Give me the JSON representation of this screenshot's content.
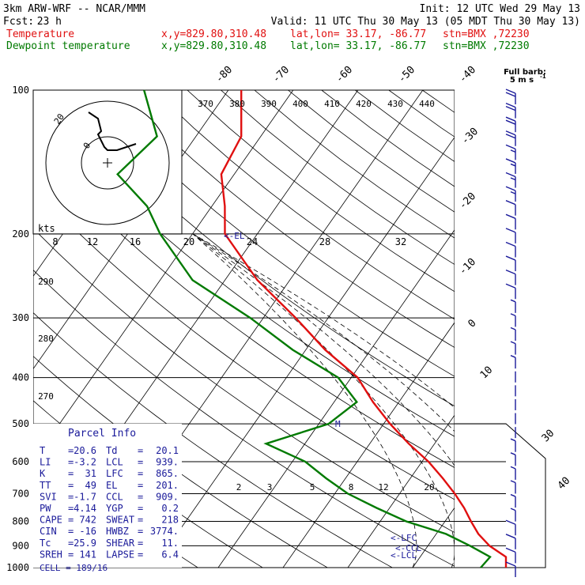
{
  "header": {
    "model": "3km ARW-WRF -- NCAR/MMM",
    "init": "Init: 12 UTC Wed 29 May 13",
    "fcst_label": "Fcst:",
    "fcst_hours": "23 h",
    "valid": "Valid: 11 UTC Thu 30 May 13 (05 MDT Thu 30 May 13)",
    "temp_line": {
      "name": "Temperature",
      "xy": "x,y=829.80,310.48",
      "latlon": "lat,lon= 33.17, -86.77",
      "stn": "stn=BMX ,72230"
    },
    "dew_line": {
      "name": "Dewpoint temperature",
      "xy": "x,y=829.80,310.48",
      "latlon": "lat,lon= 33.17, -86.77",
      "stn": "stn=BMX ,72230"
    }
  },
  "colors": {
    "temperature": "#e01010",
    "dewpoint": "#007a00",
    "barbs": "#1a1a9a",
    "grid": "#000000"
  },
  "barb_legend": {
    "title": "Full barb:",
    "value": "5 m s",
    "exp": "-1"
  },
  "hodograph": {
    "kts_label": "kts",
    "rings": [
      "20",
      "0"
    ],
    "speed_ticks": [
      "8",
      "12",
      "16",
      "20",
      "24",
      "28",
      "32"
    ]
  },
  "annotations": {
    "el": "<-EL",
    "lfc": "<-LFC",
    "ccl": "<-CCL",
    "lcl": "<-LCL",
    "m_mark": "M"
  },
  "isotherm_labels": [
    "-80",
    "-70",
    "-60",
    "-50",
    "-40",
    "-30",
    "-20",
    "-10",
    "0",
    "10",
    "30",
    "40"
  ],
  "theta_labels": [
    "290",
    "280",
    "270"
  ],
  "theta_e_labels": [
    "370",
    "380",
    "390",
    "400",
    "410",
    "420",
    "430",
    "440"
  ],
  "mixing_ratio_labels": [
    "2",
    "3",
    "5",
    "8",
    "12",
    "20"
  ],
  "parcel_info": {
    "title": "Parcel Info",
    "rows": [
      {
        "k1": "T",
        "v1": "20.6",
        "k2": "Td",
        "v2": "20.1"
      },
      {
        "k1": "LI",
        "v1": "-3.2",
        "k2": "LCL",
        "v2": "939."
      },
      {
        "k1": "K",
        "v1": "31",
        "k2": "LFC",
        "v2": "865."
      },
      {
        "k1": "TT",
        "v1": "49",
        "k2": "EL",
        "v2": "201."
      },
      {
        "k1": "SVI",
        "v1": "-1.7",
        "k2": "CCL",
        "v2": "909."
      },
      {
        "k1": "PW",
        "v1": "4.14",
        "k2": "YGP",
        "v2": "0.2"
      },
      {
        "k1": "CAPE",
        "v1": "742",
        "k2": "SWEAT",
        "v2": "218"
      },
      {
        "k1": "CIN",
        "v1": "-16",
        "k2": "HWBZ",
        "v2": "3774."
      },
      {
        "k1": "Tc",
        "v1": "25.9",
        "k2": "SHEAR",
        "v2": "11."
      },
      {
        "k1": "SREH",
        "v1": "141",
        "k2": "LAPSE",
        "v2": "6.4"
      }
    ],
    "cell": "CELL = 189/16"
  },
  "chart_data": {
    "type": "line",
    "chart_kind": "skew-T log-P sounding",
    "y_axis": {
      "label": "",
      "scale": "log",
      "ticks": [
        100,
        200,
        300,
        400,
        500,
        600,
        700,
        800,
        900,
        1000
      ],
      "range": [
        1000,
        100
      ]
    },
    "x_axis": {
      "label": "",
      "ticks": [
        -80,
        -70,
        -60,
        -50,
        -40,
        -30,
        -20,
        -10,
        0,
        10,
        30,
        40
      ]
    },
    "series": [
      {
        "name": "Temperature",
        "points": [
          {
            "p": 1000,
            "t": 24.5
          },
          {
            "p": 950,
            "t": 25.0
          },
          {
            "p": 900,
            "t": 19.5
          },
          {
            "p": 850,
            "t": 16.5
          },
          {
            "p": 800,
            "t": 14.0
          },
          {
            "p": 750,
            "t": 11.5
          },
          {
            "p": 700,
            "t": 8.5
          },
          {
            "p": 650,
            "t": 5.0
          },
          {
            "p": 600,
            "t": 1.0
          },
          {
            "p": 550,
            "t": -4.0
          },
          {
            "p": 500,
            "t": -9.0
          },
          {
            "p": 450,
            "t": -14.0
          },
          {
            "p": 400,
            "t": -19.0
          },
          {
            "p": 350,
            "t": -27.0
          },
          {
            "p": 300,
            "t": -35.0
          },
          {
            "p": 250,
            "t": -45.0
          },
          {
            "p": 200,
            "t": -55.0
          },
          {
            "p": 175,
            "t": -58.0
          },
          {
            "p": 150,
            "t": -62.0
          },
          {
            "p": 125,
            "t": -63.0
          },
          {
            "p": 100,
            "t": -68.0
          }
        ]
      },
      {
        "name": "Dewpoint temperature",
        "points": [
          {
            "p": 1000,
            "t": 20.5
          },
          {
            "p": 950,
            "t": 20.8
          },
          {
            "p": 900,
            "t": 16.5
          },
          {
            "p": 850,
            "t": 11.5
          },
          {
            "p": 800,
            "t": 4.0
          },
          {
            "p": 750,
            "t": -2.0
          },
          {
            "p": 700,
            "t": -8.0
          },
          {
            "p": 650,
            "t": -13.0
          },
          {
            "p": 600,
            "t": -18.0
          },
          {
            "p": 550,
            "t": -26.0
          },
          {
            "p": 500,
            "t": -18.5
          },
          {
            "p": 450,
            "t": -16.5
          },
          {
            "p": 400,
            "t": -22.0
          },
          {
            "p": 350,
            "t": -32.0
          },
          {
            "p": 300,
            "t": -42.0
          },
          {
            "p": 250,
            "t": -55.0
          },
          {
            "p": 200,
            "t": -65.0
          },
          {
            "p": 175,
            "t": -70.0
          },
          {
            "p": 150,
            "t": -78.0
          },
          {
            "p": 125,
            "t": -76.0
          },
          {
            "p": 100,
            "t": -83.0
          }
        ]
      }
    ],
    "hodograph_trace": [
      {
        "u": -6,
        "v": 16
      },
      {
        "u": -3,
        "v": 14
      },
      {
        "u": -2,
        "v": 10
      },
      {
        "u": -3,
        "v": 9
      },
      {
        "u": -2,
        "v": 7
      },
      {
        "u": -1,
        "v": 5
      },
      {
        "u": 0,
        "v": 4
      },
      {
        "u": 3,
        "v": 4
      },
      {
        "u": 6,
        "v": 5
      },
      {
        "u": 9,
        "v": 6
      }
    ],
    "wind_barbs_speed_ms": [
      12,
      11,
      10,
      10,
      9,
      9,
      8,
      8,
      7,
      7,
      6,
      6,
      5,
      5,
      5,
      4,
      4,
      3,
      3,
      3,
      2,
      2,
      2,
      2,
      2,
      3,
      3,
      3,
      4,
      4,
      4,
      5,
      5,
      6,
      6
    ],
    "grid": true,
    "legend": "top-left"
  }
}
